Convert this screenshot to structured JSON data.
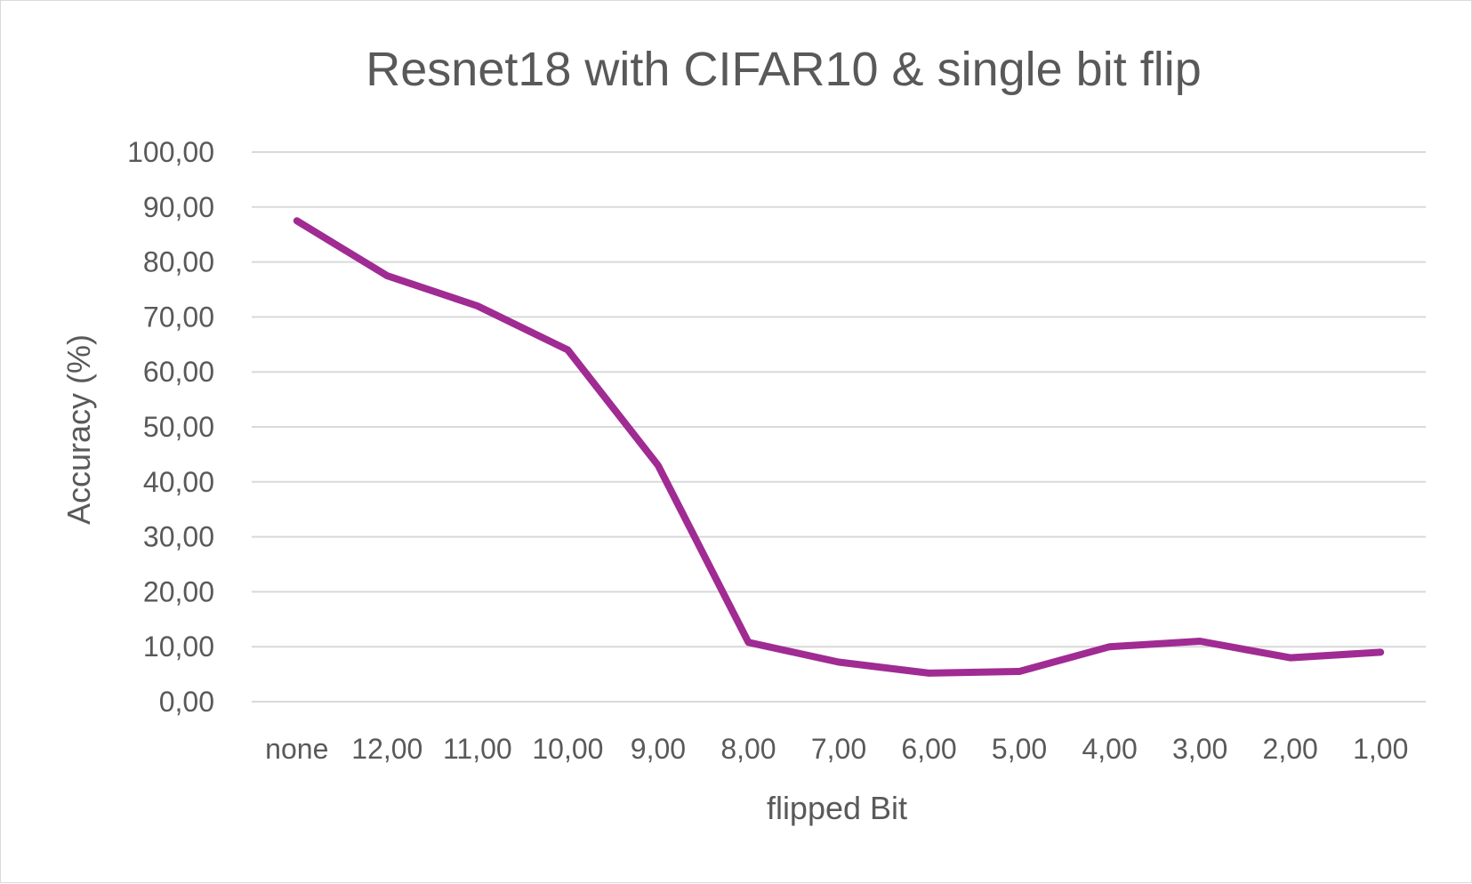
{
  "chart_data": {
    "type": "line",
    "title": "Resnet18 with CIFAR10 & single bit flip",
    "xlabel": "flipped Bit",
    "ylabel": "Accuracy (%)",
    "categories": [
      "none",
      "12,00",
      "11,00",
      "10,00",
      "9,00",
      "8,00",
      "7,00",
      "6,00",
      "5,00",
      "4,00",
      "3,00",
      "2,00",
      "1,00"
    ],
    "series": [
      {
        "values": [
          87.5,
          77.5,
          72.0,
          64.0,
          43.0,
          10.8,
          7.2,
          5.2,
          5.5,
          10.0,
          11.0,
          8.0,
          9.0
        ],
        "color": "#A02B93"
      }
    ],
    "ylim": [
      0,
      100
    ],
    "yticks": [
      "0,00",
      "10,00",
      "20,00",
      "30,00",
      "40,00",
      "50,00",
      "60,00",
      "70,00",
      "80,00",
      "90,00",
      "100,00"
    ],
    "grid": true,
    "legend": "none"
  }
}
